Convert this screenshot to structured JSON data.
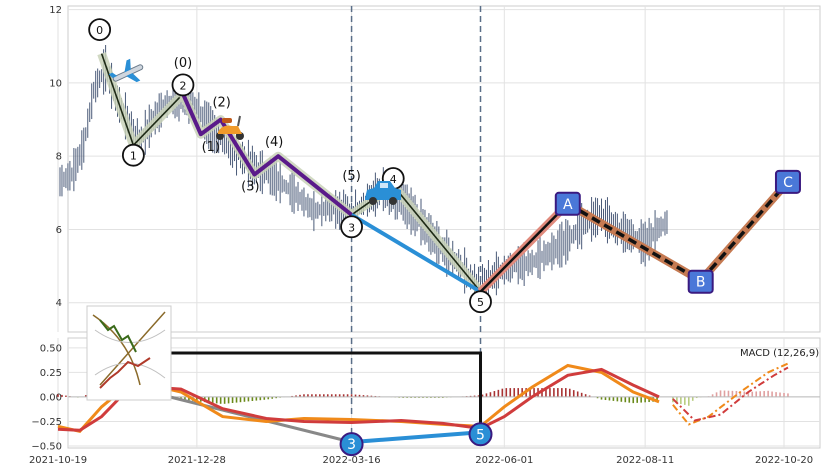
{
  "colors": {
    "candle": "#4a5a78",
    "wave_fill": "#c9d2b8",
    "purple": "#5a1a8a",
    "blue": "#2a8fd6",
    "salmon": "#e08a7c",
    "brown": "#c57a52",
    "macd_orange": "#f08a1a",
    "macd_red": "#d03c3c",
    "hist_green": "#6a8a1a",
    "hist_red": "#a83232",
    "box_fill": "#4a78d8",
    "box_edge": "#3a1a80"
  },
  "icons": [
    "airplane-icon",
    "scooter-icon",
    "car-icon",
    "chart-thumbnail-icon"
  ],
  "chart_data": [
    {
      "type": "candlestick",
      "x_ticks": [
        "2021-10-19",
        "2021-12-28",
        "2022-03-16",
        "2022-06-01",
        "2022-08-11",
        "2022-10-20"
      ],
      "y_ticks": [
        "4",
        "6",
        "8",
        "10",
        "12"
      ],
      "ylim": [
        3.2,
        12.1
      ],
      "grid": true,
      "vertical_markers": [
        "2022-03-16",
        "2022-05-20"
      ],
      "price_series": [
        {
          "x": "2021-10-20",
          "y": 7.3
        },
        {
          "x": "2021-10-26",
          "y": 7.5
        },
        {
          "x": "2021-11-01",
          "y": 8.3
        },
        {
          "x": "2021-11-06",
          "y": 9.8
        },
        {
          "x": "2021-11-12",
          "y": 10.4
        },
        {
          "x": "2021-11-17",
          "y": 9.6
        },
        {
          "x": "2021-11-23",
          "y": 9.0
        },
        {
          "x": "2021-11-29",
          "y": 8.4
        },
        {
          "x": "2021-12-05",
          "y": 8.9
        },
        {
          "x": "2021-12-12",
          "y": 9.4
        },
        {
          "x": "2021-12-20",
          "y": 9.6
        },
        {
          "x": "2021-12-28",
          "y": 9.3
        },
        {
          "x": "2022-01-06",
          "y": 8.6
        },
        {
          "x": "2022-01-15",
          "y": 8.2
        },
        {
          "x": "2022-01-25",
          "y": 7.7
        },
        {
          "x": "2022-02-05",
          "y": 7.4
        },
        {
          "x": "2022-02-15",
          "y": 7.0
        },
        {
          "x": "2022-02-25",
          "y": 6.5
        },
        {
          "x": "2022-03-05",
          "y": 6.6
        },
        {
          "x": "2022-03-16",
          "y": 6.4
        },
        {
          "x": "2022-03-24",
          "y": 6.8
        },
        {
          "x": "2022-04-01",
          "y": 7.1
        },
        {
          "x": "2022-04-10",
          "y": 6.8
        },
        {
          "x": "2022-04-20",
          "y": 6.2
        },
        {
          "x": "2022-04-30",
          "y": 5.5
        },
        {
          "x": "2022-05-10",
          "y": 5.0
        },
        {
          "x": "2022-05-20",
          "y": 4.4
        },
        {
          "x": "2022-05-28",
          "y": 4.8
        },
        {
          "x": "2022-06-06",
          "y": 5.0
        },
        {
          "x": "2022-06-15",
          "y": 5.1
        },
        {
          "x": "2022-06-25",
          "y": 5.4
        },
        {
          "x": "2022-07-03",
          "y": 5.7
        },
        {
          "x": "2022-07-12",
          "y": 6.2
        },
        {
          "x": "2022-07-20",
          "y": 6.4
        },
        {
          "x": "2022-07-28",
          "y": 6.0
        },
        {
          "x": "2022-08-05",
          "y": 5.8
        },
        {
          "x": "2022-08-11",
          "y": 5.6
        },
        {
          "x": "2022-08-17",
          "y": 6.0
        },
        {
          "x": "2022-08-22",
          "y": 6.2
        }
      ],
      "wave_main": [
        {
          "label": "0",
          "x": "2021-11-10",
          "y": 10.8
        },
        {
          "label": "1",
          "x": "2021-11-26",
          "y": 8.3
        },
        {
          "label": "2",
          "x": "2021-12-21",
          "y": 9.7
        },
        {
          "label": "3",
          "x": "2022-03-16",
          "y": 6.4
        },
        {
          "label": "4",
          "x": "2022-04-06",
          "y": 7.2
        },
        {
          "label": "5",
          "x": "2022-05-20",
          "y": 4.3
        }
      ],
      "wave_sub": [
        {
          "label": "(0)",
          "x": "2021-12-21",
          "y": 9.7
        },
        {
          "label": "(1)",
          "x": "2021-12-30",
          "y": 8.6
        },
        {
          "label": "(2)",
          "x": "2022-01-09",
          "y": 9.0
        },
        {
          "label": "(3)",
          "x": "2022-01-26",
          "y": 7.5
        },
        {
          "label": "(4)",
          "x": "2022-02-07",
          "y": 8.0
        },
        {
          "label": "(5)",
          "x": "2022-03-16",
          "y": 6.4
        }
      ],
      "projection_abc": [
        {
          "label": "A",
          "x": "2022-07-03",
          "y": 6.7
        },
        {
          "label": "B",
          "x": "2022-09-08",
          "y": 4.6
        },
        {
          "label": "C",
          "x": "2022-10-22",
          "y": 7.3
        }
      ]
    },
    {
      "type": "macd",
      "title": "MACD (12,26,9)",
      "y_ticks": [
        "0.50",
        "0.25",
        "0.00",
        "−0.25",
        "−0.50"
      ],
      "ylim": [
        -0.52,
        0.6
      ],
      "macd_line": [
        {
          "x": "2021-10-19",
          "y": -0.3
        },
        {
          "x": "2021-10-30",
          "y": -0.35
        },
        {
          "x": "2021-11-10",
          "y": -0.1
        },
        {
          "x": "2021-11-22",
          "y": 0.1
        },
        {
          "x": "2021-12-05",
          "y": 0.12
        },
        {
          "x": "2021-12-20",
          "y": 0.05
        },
        {
          "x": "2022-01-10",
          "y": -0.2
        },
        {
          "x": "2022-02-01",
          "y": -0.25
        },
        {
          "x": "2022-02-20",
          "y": -0.22
        },
        {
          "x": "2022-03-16",
          "y": -0.23
        },
        {
          "x": "2022-04-10",
          "y": -0.25
        },
        {
          "x": "2022-05-01",
          "y": -0.28
        },
        {
          "x": "2022-05-20",
          "y": -0.3
        },
        {
          "x": "2022-06-01",
          "y": -0.1
        },
        {
          "x": "2022-06-15",
          "y": 0.1
        },
        {
          "x": "2022-07-03",
          "y": 0.32
        },
        {
          "x": "2022-07-20",
          "y": 0.25
        },
        {
          "x": "2022-08-05",
          "y": 0.05
        },
        {
          "x": "2022-08-18",
          "y": -0.05
        }
      ],
      "signal_line": [
        {
          "x": "2021-10-19",
          "y": -0.33
        },
        {
          "x": "2021-10-30",
          "y": -0.34
        },
        {
          "x": "2021-11-10",
          "y": -0.2
        },
        {
          "x": "2021-11-22",
          "y": 0.05
        },
        {
          "x": "2021-12-05",
          "y": 0.1
        },
        {
          "x": "2021-12-20",
          "y": 0.08
        },
        {
          "x": "2022-01-10",
          "y": -0.12
        },
        {
          "x": "2022-02-01",
          "y": -0.22
        },
        {
          "x": "2022-02-20",
          "y": -0.25
        },
        {
          "x": "2022-03-16",
          "y": -0.26
        },
        {
          "x": "2022-04-10",
          "y": -0.24
        },
        {
          "x": "2022-05-01",
          "y": -0.27
        },
        {
          "x": "2022-05-20",
          "y": -0.32
        },
        {
          "x": "2022-06-01",
          "y": -0.2
        },
        {
          "x": "2022-06-15",
          "y": 0.0
        },
        {
          "x": "2022-07-03",
          "y": 0.22
        },
        {
          "x": "2022-07-20",
          "y": 0.28
        },
        {
          "x": "2022-08-05",
          "y": 0.12
        },
        {
          "x": "2022-08-18",
          "y": 0.0
        }
      ],
      "projection_macd": [
        {
          "x": "2022-08-25",
          "y": -0.08
        },
        {
          "x": "2022-09-02",
          "y": -0.28
        },
        {
          "x": "2022-09-12",
          "y": -0.2
        },
        {
          "x": "2022-09-28",
          "y": 0.05
        },
        {
          "x": "2022-10-12",
          "y": 0.25
        },
        {
          "x": "2022-10-22",
          "y": 0.34
        }
      ],
      "projection_signal": [
        {
          "x": "2022-08-25",
          "y": -0.02
        },
        {
          "x": "2022-09-05",
          "y": -0.24
        },
        {
          "x": "2022-09-18",
          "y": -0.18
        },
        {
          "x": "2022-10-02",
          "y": 0.05
        },
        {
          "x": "2022-10-15",
          "y": 0.22
        },
        {
          "x": "2022-10-22",
          "y": 0.3
        }
      ],
      "wave_points": [
        {
          "label": "3",
          "x": "2022-03-16",
          "y": -0.46
        },
        {
          "label": "5",
          "x": "2022-05-20",
          "y": -0.36
        }
      ]
    }
  ]
}
